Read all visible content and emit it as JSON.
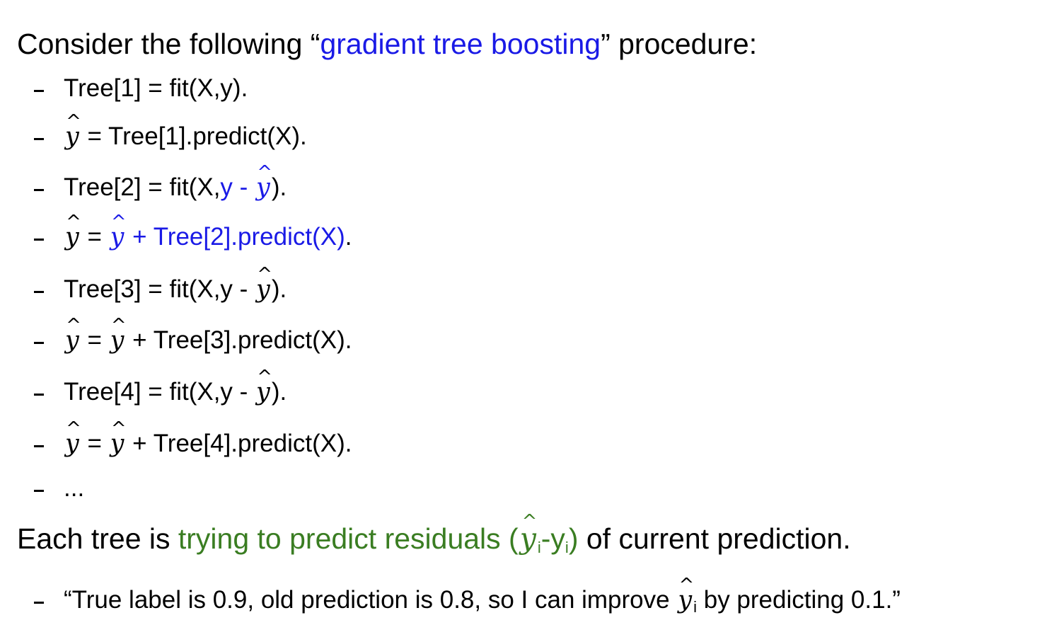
{
  "heading1": {
    "before": "Consider the following “",
    "highlight": "gradient tree boosting",
    "after": "” procedure:"
  },
  "steps": {
    "s1": "Tree[1] = fit(X,y).",
    "s2_rest": " = Tree[1].predict(X).",
    "s3_pre": "Tree[2] = fit(X,",
    "s3_blue": "y - ",
    "s3_post": ").",
    "s4_eq": " = ",
    "s4_blue": " + Tree[2].predict(X)",
    "s4_dot": ".",
    "s5_pre": "Tree[3] = fit(X,y - ",
    "s5_post": ").",
    "s6_eq": " = ",
    "s6_rest": " + Tree[3].predict(X).",
    "s7_pre": "Tree[4] = fit(X,y - ",
    "s7_post": ").",
    "s8_eq": " = ",
    "s8_rest": " + Tree[4].predict(X).",
    "s9": "..."
  },
  "heading2": {
    "before": "Each tree is ",
    "green_text": "trying to predict residuals (",
    "green_mid": "-y",
    "green_close": ")",
    "after": " of current prediction.",
    "sub": "i"
  },
  "quote": {
    "before": "“True label is 0.9, old prediction is 0.8, so I can improve ",
    "after": " by predicting 0.1.”",
    "sub": "i"
  },
  "symbols": {
    "y": "y",
    "hat": "^"
  },
  "colors": {
    "blue": "#1a1ae6",
    "green": "#3a7d22",
    "text": "#000000"
  }
}
